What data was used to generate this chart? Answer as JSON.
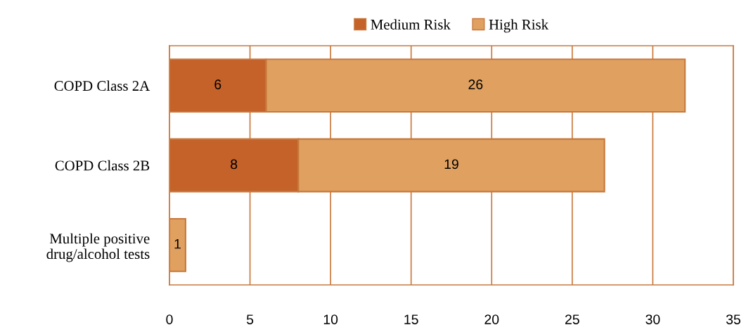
{
  "chart_data": {
    "type": "bar",
    "orientation": "horizontal",
    "stacked": true,
    "categories": [
      "COPD Class 2A",
      "COPD Class 2B",
      "Multiple positive\ndrug/alcohol tests"
    ],
    "series": [
      {
        "name": "Medium Risk",
        "color": "#c4622a",
        "values": [
          6,
          8,
          null
        ]
      },
      {
        "name": "High Risk",
        "color": "#dfa060",
        "values": [
          26,
          19,
          1
        ]
      }
    ],
    "xlim": [
      0,
      35
    ],
    "xticks": [
      0,
      5,
      10,
      15,
      20,
      25,
      30,
      35
    ],
    "grid": "x",
    "legend": "top",
    "data_labels": true
  }
}
